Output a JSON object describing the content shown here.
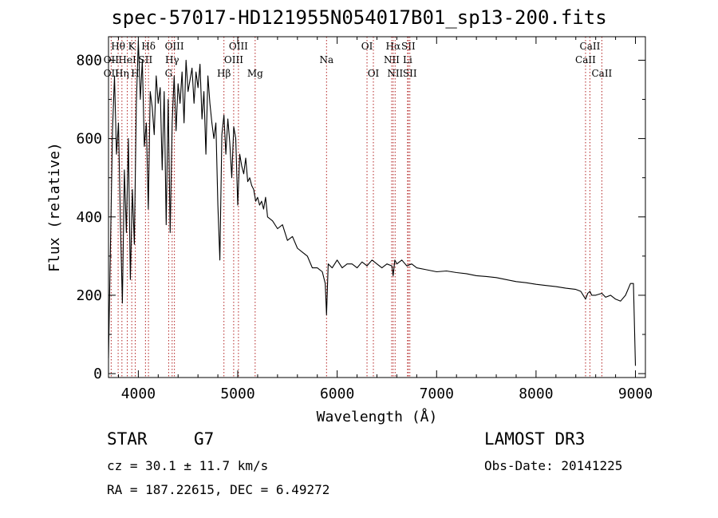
{
  "chart_data": {
    "type": "line",
    "title": "spec-57017-HD121955N054017B01_sp13-200.fits",
    "xlabel": "Wavelength (Å)",
    "ylabel": "Flux (relative)",
    "xlim": [
      3700,
      9100
    ],
    "ylim": [
      -10,
      860
    ],
    "xticks": [
      4000,
      5000,
      6000,
      7000,
      8000,
      9000
    ],
    "yticks": [
      0,
      200,
      400,
      600,
      800
    ],
    "series": [
      {
        "name": "flux",
        "x": [
          3700,
          3720,
          3740,
          3760,
          3780,
          3800,
          3820,
          3840,
          3860,
          3880,
          3900,
          3920,
          3940,
          3960,
          3980,
          4000,
          4020,
          4040,
          4060,
          4080,
          4100,
          4120,
          4140,
          4160,
          4180,
          4200,
          4220,
          4240,
          4260,
          4280,
          4300,
          4320,
          4340,
          4360,
          4380,
          4400,
          4420,
          4440,
          4460,
          4480,
          4500,
          4520,
          4540,
          4560,
          4580,
          4600,
          4620,
          4640,
          4660,
          4680,
          4700,
          4720,
          4740,
          4760,
          4780,
          4800,
          4820,
          4840,
          4861,
          4880,
          4900,
          4920,
          4940,
          4960,
          4980,
          5000,
          5020,
          5040,
          5060,
          5080,
          5100,
          5120,
          5140,
          5160,
          5180,
          5200,
          5220,
          5240,
          5260,
          5280,
          5300,
          5350,
          5400,
          5450,
          5500,
          5550,
          5600,
          5650,
          5700,
          5750,
          5800,
          5850,
          5880,
          5893,
          5910,
          5950,
          6000,
          6050,
          6100,
          6150,
          6200,
          6250,
          6300,
          6350,
          6400,
          6450,
          6500,
          6550,
          6563,
          6580,
          6600,
          6650,
          6700,
          6750,
          6800,
          6900,
          7000,
          7100,
          7200,
          7300,
          7400,
          7500,
          7600,
          7700,
          7800,
          7900,
          8000,
          8100,
          8200,
          8300,
          8400,
          8450,
          8498,
          8520,
          8542,
          8560,
          8600,
          8662,
          8700,
          8750,
          8800,
          8850,
          8900,
          8950,
          8980,
          9000
        ],
        "values": [
          40,
          330,
          620,
          760,
          560,
          640,
          380,
          180,
          520,
          360,
          600,
          240,
          470,
          330,
          690,
          850,
          700,
          800,
          580,
          640,
          420,
          720,
          680,
          610,
          760,
          690,
          730,
          520,
          720,
          380,
          700,
          360,
          640,
          760,
          620,
          740,
          690,
          770,
          640,
          800,
          720,
          750,
          780,
          690,
          770,
          730,
          790,
          650,
          720,
          560,
          760,
          690,
          640,
          600,
          640,
          430,
          290,
          610,
          660,
          560,
          650,
          590,
          500,
          630,
          600,
          430,
          560,
          530,
          510,
          550,
          490,
          500,
          480,
          470,
          440,
          450,
          430,
          440,
          420,
          450,
          400,
          390,
          370,
          380,
          340,
          350,
          320,
          310,
          300,
          270,
          270,
          260,
          230,
          150,
          280,
          270,
          290,
          270,
          280,
          280,
          270,
          285,
          275,
          290,
          280,
          270,
          280,
          275,
          250,
          290,
          280,
          290,
          275,
          280,
          270,
          265,
          260,
          262,
          258,
          255,
          250,
          248,
          245,
          240,
          235,
          232,
          228,
          225,
          222,
          218,
          215,
          210,
          190,
          205,
          210,
          200,
          200,
          205,
          195,
          200,
          190,
          185,
          200,
          230,
          230,
          20
        ]
      }
    ],
    "line_markers": [
      {
        "label": "Hθ",
        "x": 3797,
        "row": 1
      },
      {
        "label": "K",
        "x": 3934,
        "row": 1
      },
      {
        "label": "Hδ",
        "x": 4102,
        "row": 1
      },
      {
        "label": "OIII",
        "x": 4363,
        "row": 1
      },
      {
        "label": "OIII",
        "x": 5007,
        "row": 1
      },
      {
        "label": "OI",
        "x": 6300,
        "row": 1
      },
      {
        "label": "Hα",
        "x": 6563,
        "row": 1
      },
      {
        "label": "SII",
        "x": 6716,
        "row": 1
      },
      {
        "label": "CaII",
        "x": 8542,
        "row": 1
      },
      {
        "label": "OII",
        "x": 3727,
        "row": 2
      },
      {
        "label": "HeI",
        "x": 3889,
        "row": 2
      },
      {
        "label": "SII",
        "x": 4072,
        "row": 2
      },
      {
        "label": "Hγ",
        "x": 4340,
        "row": 2
      },
      {
        "label": "OIII",
        "x": 4959,
        "row": 2
      },
      {
        "label": "Na",
        "x": 5893,
        "row": 2
      },
      {
        "label": "NII",
        "x": 6548,
        "row": 2
      },
      {
        "label": "Li",
        "x": 6708,
        "row": 2
      },
      {
        "label": "CaII",
        "x": 8498,
        "row": 2
      },
      {
        "label": "OII",
        "x": 3727,
        "row": 3
      },
      {
        "label": "Hη",
        "x": 3835,
        "row": 3
      },
      {
        "label": "H",
        "x": 3969,
        "row": 3
      },
      {
        "label": "G",
        "x": 4305,
        "row": 3
      },
      {
        "label": "Hβ",
        "x": 4861,
        "row": 3
      },
      {
        "label": "Mg",
        "x": 5175,
        "row": 3
      },
      {
        "label": "OI",
        "x": 6364,
        "row": 3
      },
      {
        "label": "NII",
        "x": 6583,
        "row": 3
      },
      {
        "label": "SII",
        "x": 6731,
        "row": 3
      },
      {
        "label": "CaII",
        "x": 8662,
        "row": 3
      }
    ]
  },
  "info": {
    "object_class": "STAR",
    "subclass": "G7",
    "survey": "LAMOST DR3",
    "cz": "cz = 30.1 ± 11.7 km/s",
    "obs_date": "Obs-Date: 20141225",
    "radec": "RA = 187.22615, DEC =    6.49272"
  }
}
